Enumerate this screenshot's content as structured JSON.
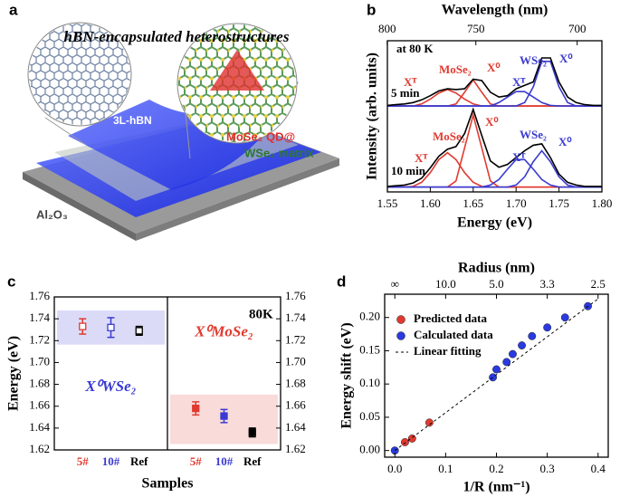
{
  "illustration": {
    "panel": "a",
    "title": "hBN-encapsulated heterostructures",
    "layer_label": "3L-hBN",
    "qd_label": "MoSe₂ QD@",
    "matrix_label": "WSe₂ matrix",
    "substrate_label": "Al₂O₃"
  },
  "chart_data": [
    {
      "type": "line",
      "panel": "b",
      "xlabel": "Energy (eV)",
      "ylabel": "Intensity (arb. units)",
      "x2label": "Wavelength (nm)",
      "x": [
        1.55,
        1.56,
        1.57,
        1.58,
        1.59,
        1.6,
        1.61,
        1.62,
        1.63,
        1.64,
        1.65,
        1.66,
        1.67,
        1.68,
        1.69,
        1.7,
        1.71,
        1.72,
        1.73,
        1.74,
        1.75,
        1.76,
        1.77,
        1.78,
        1.79,
        1.8
      ],
      "xlim": [
        1.55,
        1.8
      ],
      "ylim": [
        0,
        2.2
      ],
      "xticks": [
        1.55,
        {
          "value": 1.6,
          "label": "1.60"
        },
        1.65,
        {
          "value": 1.7,
          "label": "1.70"
        },
        1.75,
        {
          "value": 1.8,
          "label": "1.80"
        }
      ],
      "x2ticks": [
        {
          "value": 1.5498,
          "label": "800"
        },
        {
          "value": 1.6531,
          "label": "750"
        },
        {
          "value": 1.7712,
          "label": "700"
        }
      ],
      "annotations": [
        "at 80 K",
        "5 min",
        "10 min",
        "MoSe₂",
        "X⁰",
        "Xᵀ",
        "WSe₂",
        "Xᵀ",
        "X⁰",
        "X⁰",
        "MoSe₂",
        "Xᵀ",
        "WSe₂",
        "Xᵀ",
        "X⁰"
      ],
      "series": [
        {
          "color": "#e03a30",
          "values": [
            1.25,
            1.25,
            1.25,
            1.25,
            1.28,
            1.35,
            1.44,
            1.49,
            1.44,
            1.35,
            1.28,
            1.25,
            1.25,
            1.25,
            1.25,
            1.25,
            1.25,
            1.25,
            1.25,
            1.25,
            1.25,
            1.25,
            1.25,
            1.25,
            1.25,
            1.25
          ]
        },
        {
          "color": "#e03a30",
          "values": [
            1.25,
            1.25,
            1.25,
            1.25,
            1.25,
            1.25,
            1.25,
            1.25,
            1.28,
            1.45,
            1.63,
            1.45,
            1.28,
            1.25,
            1.25,
            1.25,
            1.25,
            1.25,
            1.25,
            1.25,
            1.25,
            1.25,
            1.25,
            1.25,
            1.25,
            1.25
          ]
        },
        {
          "color": "#3a3ad0",
          "values": [
            1.25,
            1.25,
            1.25,
            1.25,
            1.25,
            1.25,
            1.25,
            1.25,
            1.25,
            1.25,
            1.25,
            1.25,
            1.25,
            1.3,
            1.38,
            1.46,
            1.46,
            1.38,
            1.3,
            1.26,
            1.25,
            1.25,
            1.25,
            1.25,
            1.25,
            1.25
          ]
        },
        {
          "color": "#3a3ad0",
          "values": [
            1.25,
            1.25,
            1.25,
            1.25,
            1.25,
            1.25,
            1.25,
            1.25,
            1.25,
            1.25,
            1.25,
            1.25,
            1.25,
            1.25,
            1.25,
            1.25,
            1.3,
            1.53,
            1.9,
            1.9,
            1.53,
            1.3,
            1.25,
            1.25,
            1.25,
            1.25
          ]
        },
        {
          "color": "#000000",
          "values": [
            1.26,
            1.27,
            1.28,
            1.3,
            1.34,
            1.4,
            1.47,
            1.5,
            1.49,
            1.5,
            1.64,
            1.62,
            1.45,
            1.38,
            1.4,
            1.5,
            1.55,
            1.6,
            1.95,
            1.95,
            1.6,
            1.38,
            1.3,
            1.27,
            1.26,
            1.26
          ]
        },
        {
          "color": "#e03a30",
          "values": [
            0.07,
            0.07,
            0.07,
            0.08,
            0.14,
            0.28,
            0.47,
            0.57,
            0.47,
            0.28,
            0.14,
            0.08,
            0.07,
            0.07,
            0.07,
            0.07,
            0.07,
            0.07,
            0.07,
            0.07,
            0.07,
            0.07,
            0.07,
            0.07,
            0.07,
            0.07
          ]
        },
        {
          "color": "#e03a30",
          "values": [
            0.07,
            0.07,
            0.07,
            0.07,
            0.07,
            0.07,
            0.07,
            0.07,
            0.16,
            0.64,
            1.12,
            0.64,
            0.16,
            0.07,
            0.07,
            0.07,
            0.07,
            0.07,
            0.07,
            0.07,
            0.07,
            0.07,
            0.07,
            0.07,
            0.07,
            0.07
          ]
        },
        {
          "color": "#3a3ad0",
          "values": [
            0.07,
            0.07,
            0.07,
            0.07,
            0.07,
            0.07,
            0.07,
            0.07,
            0.07,
            0.07,
            0.07,
            0.07,
            0.1,
            0.18,
            0.33,
            0.47,
            0.47,
            0.33,
            0.18,
            0.1,
            0.07,
            0.07,
            0.07,
            0.07,
            0.07,
            0.07
          ]
        },
        {
          "color": "#3a3ad0",
          "values": [
            0.07,
            0.07,
            0.07,
            0.07,
            0.07,
            0.07,
            0.07,
            0.07,
            0.07,
            0.07,
            0.07,
            0.07,
            0.07,
            0.07,
            0.07,
            0.1,
            0.22,
            0.44,
            0.6,
            0.44,
            0.22,
            0.1,
            0.07,
            0.07,
            0.07,
            0.07
          ]
        },
        {
          "color": "#000000",
          "values": [
            0.08,
            0.09,
            0.1,
            0.13,
            0.2,
            0.35,
            0.52,
            0.62,
            0.66,
            0.85,
            1.2,
            0.82,
            0.45,
            0.36,
            0.4,
            0.5,
            0.6,
            0.68,
            0.7,
            0.5,
            0.26,
            0.14,
            0.1,
            0.08,
            0.08,
            0.08
          ]
        }
      ]
    },
    {
      "type": "errorbar",
      "panel": "c",
      "xlabel": "Samples",
      "ylabel": "Energy (eV)",
      "annotation": "80K",
      "categories": [
        "5#",
        "10#",
        "Ref"
      ],
      "colors": [
        "#e03a30",
        "#3a3ad0",
        "#000000"
      ],
      "ylim": [
        1.62,
        1.76
      ],
      "yticks": [
        1.62,
        1.64,
        1.66,
        1.68,
        {
          "value": 1.7,
          "label": "1.70"
        },
        1.72,
        1.74,
        1.76
      ],
      "series": [
        {
          "name": "X⁰WSe₂",
          "color": "#3a3ad0",
          "filled": false,
          "values": [
            1.733,
            1.732,
            1.729
          ],
          "errors": [
            0.007,
            0.009,
            0.004
          ]
        },
        {
          "name": "X⁰MoSe₂",
          "color": "#e03a30",
          "filled": true,
          "values": [
            1.658,
            1.651,
            1.636
          ],
          "errors": [
            0.006,
            0.006,
            0.004
          ]
        }
      ]
    },
    {
      "type": "scatter",
      "panel": "d",
      "xlabel": "1/R (nm⁻¹)",
      "ylabel": "Energy shift (eV)",
      "x2label": "Radius (nm)",
      "xlim": [
        -0.02,
        0.42
      ],
      "ylim": [
        -0.01,
        0.235
      ],
      "xticks": [
        {
          "value": 0,
          "label": "0.0"
        },
        0.1,
        0.2,
        0.3,
        0.4
      ],
      "x2ticks": [
        {
          "value": 0,
          "label": "∞"
        },
        {
          "value": 0.1,
          "label": "10.0"
        },
        {
          "value": 0.2,
          "label": "5.0"
        },
        {
          "value": 0.3,
          "label": "3.3"
        },
        {
          "value": 0.4,
          "label": "2.5"
        }
      ],
      "yticks": [
        {
          "value": 0,
          "label": "0.00"
        },
        0.05,
        {
          "value": 0.1,
          "label": "0.10"
        },
        0.15,
        {
          "value": 0.2,
          "label": "0.20"
        }
      ],
      "legend": "upper left",
      "series": [
        {
          "name": "Predicted data",
          "color": "#e03a30",
          "mode": "markers",
          "x": [
            0.02,
            0.034,
            0.068
          ],
          "values": [
            0.0125,
            0.018,
            0.042
          ]
        },
        {
          "name": "Calculated data",
          "color": "#2a3ae0",
          "mode": "markers",
          "x": [
            0,
            0.193,
            0.2,
            0.22,
            0.232,
            0.25,
            0.27,
            0.3,
            0.335,
            0.38
          ],
          "values": [
            0,
            0.11,
            0.122,
            0.133,
            0.145,
            0.158,
            0.172,
            0.185,
            0.2,
            0.217
          ]
        },
        {
          "name": "Linear fitting",
          "color": "#000000",
          "mode": "dashed",
          "x": [
            0,
            0.4
          ],
          "values": [
            0,
            0.228
          ]
        }
      ]
    }
  ]
}
